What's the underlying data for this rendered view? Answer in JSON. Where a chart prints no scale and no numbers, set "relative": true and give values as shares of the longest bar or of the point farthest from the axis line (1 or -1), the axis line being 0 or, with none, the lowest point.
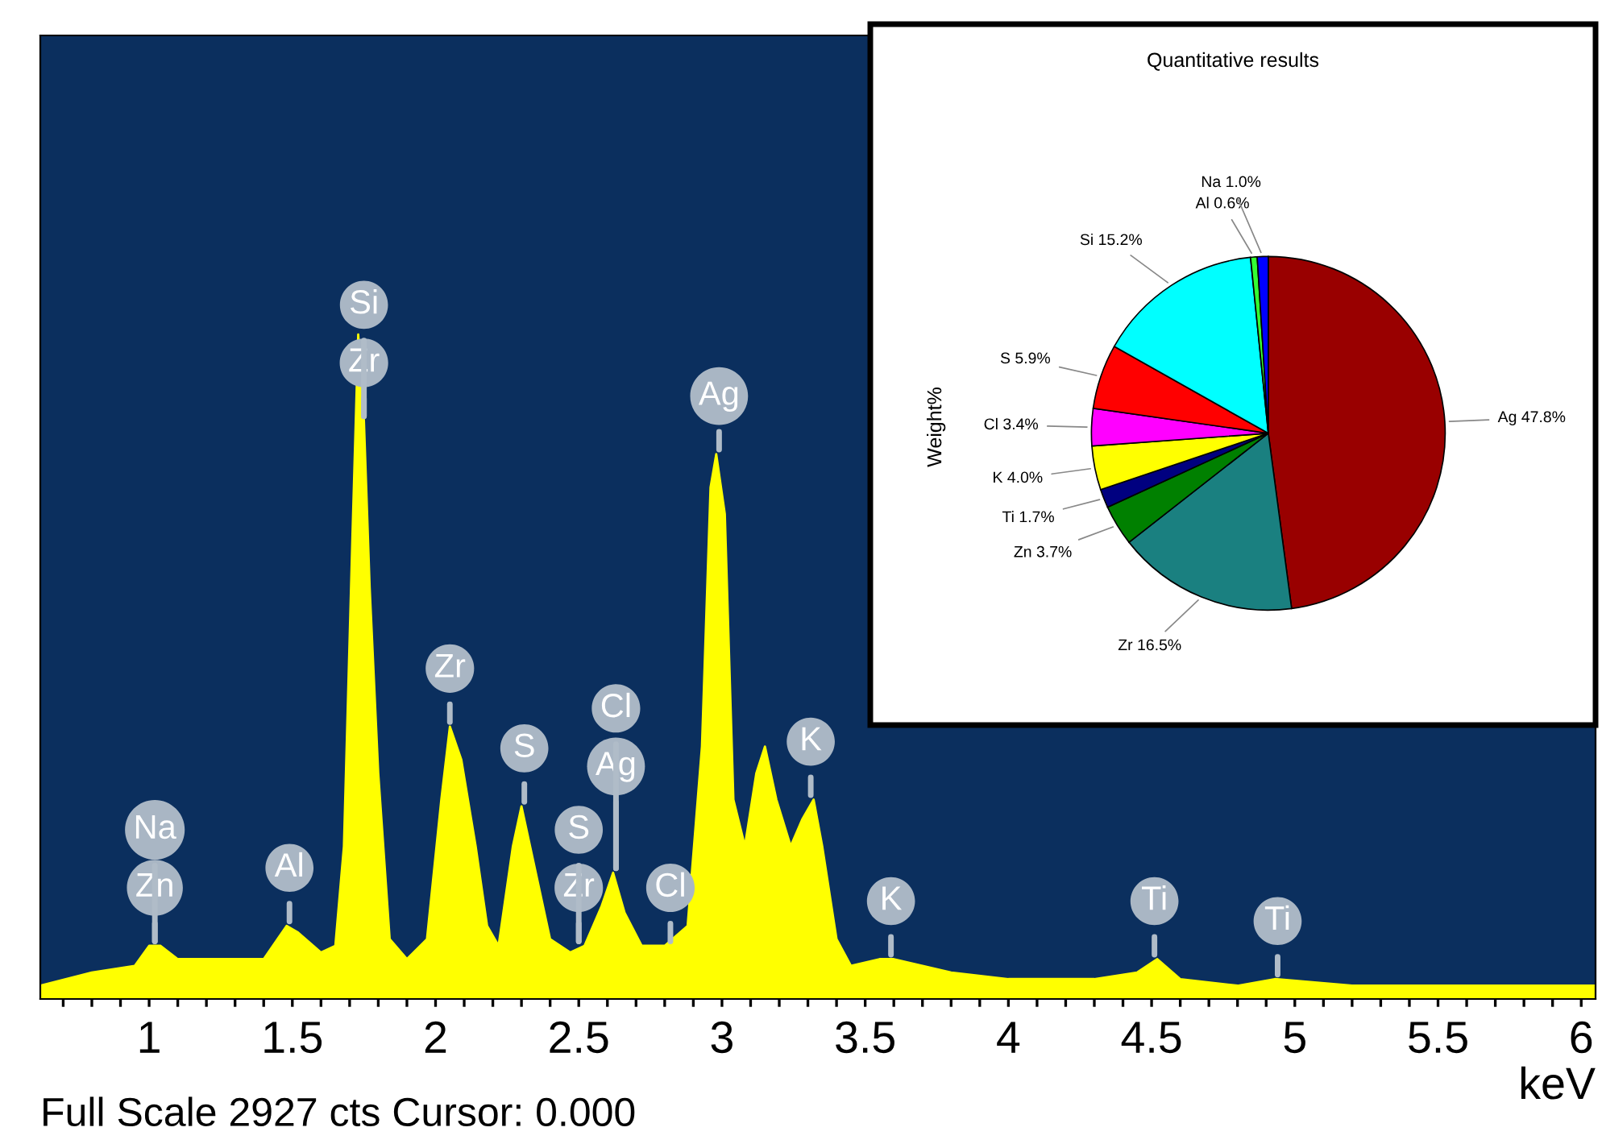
{
  "chart_data": [
    {
      "type": "area",
      "xlabel": "keV",
      "relative": true,
      "color": "#ffff00",
      "x": [
        0.62,
        0.8,
        0.95,
        1.0,
        1.04,
        1.1,
        1.2,
        1.3,
        1.4,
        1.48,
        1.52,
        1.6,
        1.65,
        1.68,
        1.71,
        1.73,
        1.75,
        1.77,
        1.8,
        1.84,
        1.9,
        1.97,
        2.02,
        2.05,
        2.09,
        2.14,
        2.18,
        2.22,
        2.27,
        2.3,
        2.34,
        2.4,
        2.47,
        2.52,
        2.58,
        2.62,
        2.66,
        2.72,
        2.8,
        2.88,
        2.93,
        2.96,
        2.98,
        3.01,
        3.04,
        3.08,
        3.12,
        3.15,
        3.19,
        3.24,
        3.28,
        3.32,
        3.35,
        3.4,
        3.45,
        3.55,
        3.6,
        3.7,
        3.8,
        4.0,
        4.3,
        4.45,
        4.52,
        4.6,
        4.8,
        4.93,
        5.2,
        5.6,
        6.05
      ],
      "values": [
        0.02,
        0.04,
        0.05,
        0.08,
        0.08,
        0.06,
        0.06,
        0.06,
        0.06,
        0.11,
        0.1,
        0.07,
        0.08,
        0.23,
        0.7,
        1,
        0.87,
        0.62,
        0.34,
        0.09,
        0.06,
        0.09,
        0.3,
        0.41,
        0.36,
        0.23,
        0.11,
        0.08,
        0.23,
        0.29,
        0.21,
        0.09,
        0.07,
        0.08,
        0.14,
        0.19,
        0.13,
        0.08,
        0.08,
        0.11,
        0.38,
        0.77,
        0.82,
        0.73,
        0.3,
        0.23,
        0.34,
        0.38,
        0.3,
        0.23,
        0.27,
        0.3,
        0.23,
        0.09,
        0.05,
        0.06,
        0.06,
        0.05,
        0.04,
        0.03,
        0.03,
        0.04,
        0.06,
        0.03,
        0.02,
        0.03,
        0.02,
        0.02,
        0.02
      ],
      "xlim": [
        0.62,
        6.05
      ],
      "xticks": [
        {
          "value": 0.7,
          "label": null
        },
        {
          "value": 0.8,
          "label": null
        },
        {
          "value": 0.9,
          "label": null
        },
        1,
        {
          "value": 1.1,
          "label": null
        },
        {
          "value": 1.2,
          "label": null
        },
        {
          "value": 1.3,
          "label": null
        },
        {
          "value": 1.4,
          "label": null
        },
        1.5,
        {
          "value": 1.6,
          "label": null
        },
        {
          "value": 1.7,
          "label": null
        },
        {
          "value": 1.8,
          "label": null
        },
        {
          "value": 1.9,
          "label": null
        },
        2,
        {
          "value": 2.1,
          "label": null
        },
        {
          "value": 2.2,
          "label": null
        },
        {
          "value": 2.3,
          "label": null
        },
        {
          "value": 2.4,
          "label": null
        },
        2.5,
        {
          "value": 2.6,
          "label": null
        },
        {
          "value": 2.7,
          "label": null
        },
        {
          "value": 2.8,
          "label": null
        },
        {
          "value": 2.9,
          "label": null
        },
        3,
        {
          "value": 3.1,
          "label": null
        },
        {
          "value": 3.2,
          "label": null
        },
        {
          "value": 3.3,
          "label": null
        },
        {
          "value": 3.4,
          "label": null
        },
        3.5,
        {
          "value": 3.6,
          "label": null
        },
        {
          "value": 3.7,
          "label": null
        },
        {
          "value": 3.8,
          "label": null
        },
        {
          "value": 3.9,
          "label": null
        },
        4,
        {
          "value": 4.1,
          "label": null
        },
        {
          "value": 4.2,
          "label": null
        },
        {
          "value": 4.3,
          "label": null
        },
        {
          "value": 4.4,
          "label": null
        },
        4.5,
        {
          "value": 4.6,
          "label": null
        },
        {
          "value": 4.7,
          "label": null
        },
        {
          "value": 4.8,
          "label": null
        },
        {
          "value": 4.9,
          "label": null
        },
        5,
        {
          "value": 5.1,
          "label": null
        },
        {
          "value": 5.2,
          "label": null
        },
        {
          "value": 5.3,
          "label": null
        },
        {
          "value": 5.4,
          "label": null
        },
        5.5,
        {
          "value": 5.6,
          "label": null
        },
        {
          "value": 5.7,
          "label": null
        },
        {
          "value": 5.8,
          "label": null
        },
        {
          "value": 5.9,
          "label": null
        },
        6
      ],
      "annotations": [
        {
          "text": "Zn",
          "x": 1.02,
          "y": 0.08
        },
        {
          "text": "Na",
          "x": 1.02,
          "y": 0.08
        },
        {
          "text": "Al",
          "x": 1.49,
          "y": 0.11
        },
        {
          "text": "Zr",
          "x": 1.75,
          "y": 0.87
        },
        {
          "text": "Si",
          "x": 1.75,
          "y": 0.87
        },
        {
          "text": "Zr",
          "x": 2.05,
          "y": 0.41
        },
        {
          "text": "S",
          "x": 2.31,
          "y": 0.29
        },
        {
          "text": "Zr",
          "x": 2.5,
          "y": 0.08
        },
        {
          "text": "S",
          "x": 2.5,
          "y": 0.08
        },
        {
          "text": "Ag",
          "x": 2.63,
          "y": 0.19
        },
        {
          "text": "Cl",
          "x": 2.63,
          "y": 0.19
        },
        {
          "text": "Cl",
          "x": 2.82,
          "y": 0.08
        },
        {
          "text": "Ag",
          "x": 2.99,
          "y": 0.82
        },
        {
          "text": "K",
          "x": 3.31,
          "y": 0.3
        },
        {
          "text": "K",
          "x": 3.59,
          "y": 0.06
        },
        {
          "text": "Ti",
          "x": 4.51,
          "y": 0.06
        },
        {
          "text": "Ti",
          "x": 4.94,
          "y": 0.03
        },
        "Full Scale 2927 cts Cursor: 0.000"
      ]
    },
    {
      "type": "pie",
      "title": "Quantitative results",
      "ylabel": "Weight%",
      "categories": [
        "Ag 47.8%",
        "Zr 16.5%",
        "Zn 3.7%",
        "Ti 1.7%",
        "K 4.0%",
        "Cl 3.4%",
        "S 5.9%",
        "Si 15.2%",
        "Al 0.6%",
        "Na 1.0%"
      ],
      "values": [
        47.8,
        16.5,
        3.7,
        1.7,
        4.0,
        3.4,
        5.9,
        15.2,
        0.6,
        1.0
      ],
      "colors": [
        "#990000",
        "#1a8080",
        "#008000",
        "#000080",
        "#ffff00",
        "#ff00ff",
        "#ff0000",
        "#00ffff",
        "#33ff33",
        "#0000ff"
      ]
    }
  ]
}
